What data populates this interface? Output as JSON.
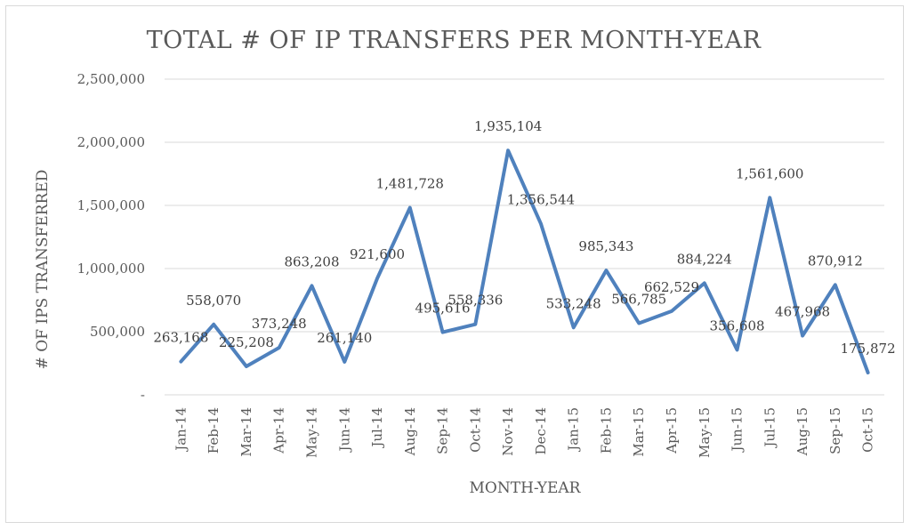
{
  "chart_data": {
    "type": "line",
    "title": "TOTAL # OF IP TRANSFERS PER MONTH-YEAR",
    "xlabel": "MONTH-YEAR",
    "ylabel": "# OF IPS TRANSFERRED",
    "ylim": [
      0,
      2500000
    ],
    "y_ticks": [
      0,
      500000,
      1000000,
      1500000,
      2000000,
      2500000
    ],
    "y_tick_labels": [
      "-",
      "500,000",
      "1,000,000",
      "1,500,000",
      "2,000,000",
      "2,500,000"
    ],
    "grid": true,
    "legend": "none",
    "series_color": "#4f81bd",
    "categories": [
      "Jan-14",
      "Feb-14",
      "Mar-14",
      "Apr-14",
      "May-14",
      "Jun-14",
      "Jul-14",
      "Aug-14",
      "Sep-14",
      "Oct-14",
      "Nov-14",
      "Dec-14",
      "Jan-15",
      "Feb-15",
      "Mar-15",
      "Apr-15",
      "May-15",
      "Jun-15",
      "Jul-15",
      "Aug-15",
      "Sep-15",
      "Oct-15"
    ],
    "values": [
      263168,
      558070,
      225208,
      373248,
      863208,
      261140,
      921600,
      1481728,
      495616,
      558336,
      1935104,
      1356544,
      533248,
      985343,
      566785,
      662529,
      884224,
      356608,
      1561600,
      467968,
      870912,
      175872
    ],
    "data_labels": [
      "263,168",
      "558,070",
      "225,208",
      "373,248",
      "863,208",
      "261,140",
      "921,600",
      "1,481,728",
      "495,616",
      "558,336",
      "1,935,104",
      "1,356,544",
      "533,248",
      "985,343",
      "566,785",
      "662,529",
      "884,224",
      "356,608",
      "1,561,600",
      "467,968",
      "870,912",
      "175,872"
    ]
  }
}
